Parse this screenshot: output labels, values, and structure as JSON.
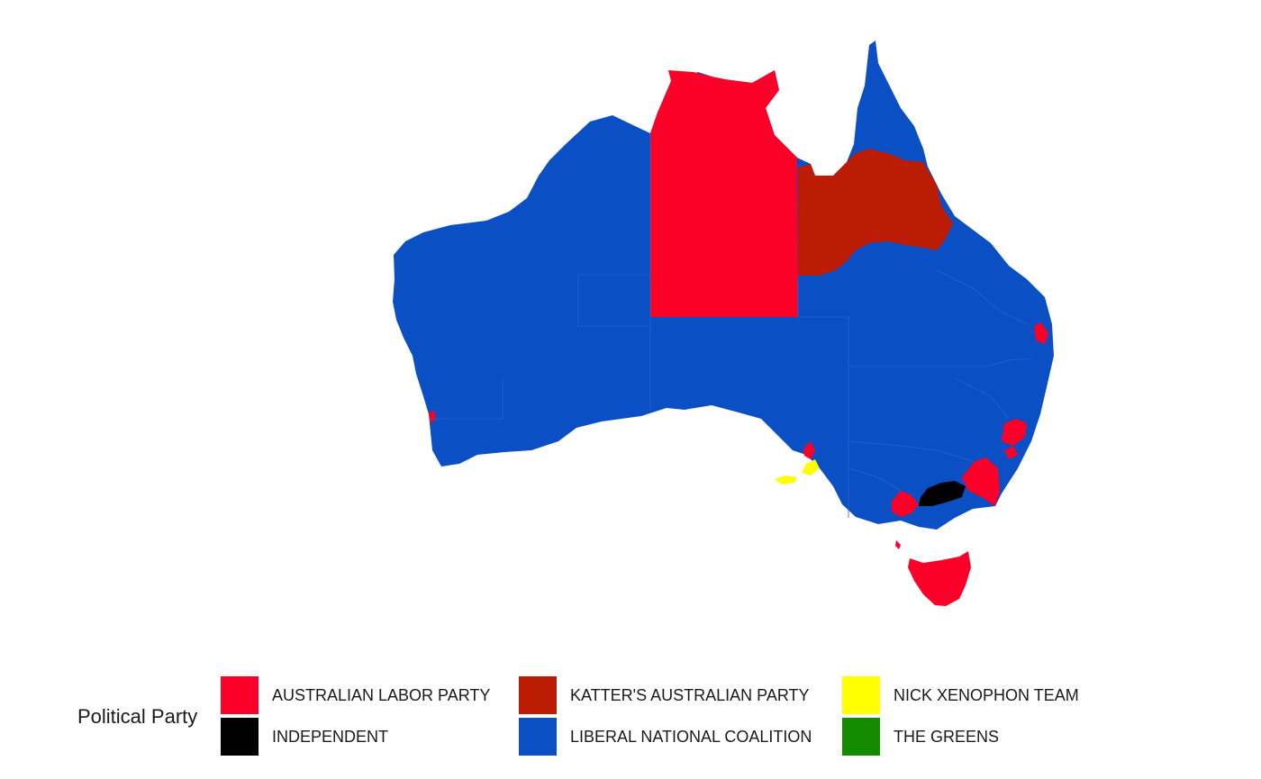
{
  "legend": {
    "title": "Political Party",
    "items": [
      {
        "label": "AUSTRALIAN LABOR PARTY",
        "color": "#fb0029"
      },
      {
        "label": "INDEPENDENT",
        "color": "#000000"
      },
      {
        "label": "KATTER'S AUSTRALIAN PARTY",
        "color": "#bd1c04"
      },
      {
        "label": "LIBERAL NATIONAL COALITION",
        "color": "#0a4fc3"
      },
      {
        "label": "NICK XENOPHON TEAM",
        "color": "#fefe00"
      },
      {
        "label": "THE GREENS",
        "color": "#148a00"
      }
    ]
  },
  "map": {
    "colors": {
      "labor": "#fb0029",
      "independent": "#000000",
      "katter": "#bd1c04",
      "coalition": "#0a4fc3",
      "xenophon": "#fefe00",
      "boundary": "#2e63cc"
    }
  }
}
